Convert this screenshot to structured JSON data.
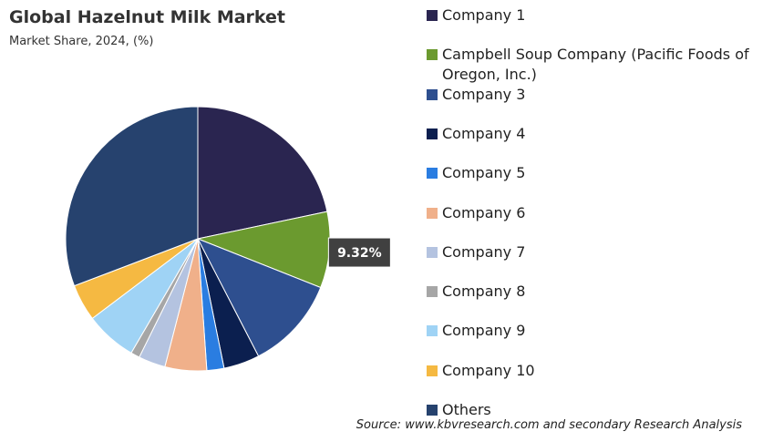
{
  "chart_data": {
    "type": "pie",
    "title": "Global Hazelnut Milk Market",
    "subtitle": "Market Share, 2024, (%)",
    "source": "Source: www.kbvresearch.com and secondary Research Analysis",
    "categories": [
      "Company 1",
      "Campbell Soup Company (Pacific Foods of Oregon, Inc.)",
      "Company 3",
      "Company 4",
      "Company 5",
      "Company 6",
      "Company 7",
      "Company 8",
      "Company 9",
      "Company 10",
      "Others"
    ],
    "values": [
      21.7,
      9.32,
      11.4,
      4.4,
      2.1,
      5.1,
      3.3,
      1.1,
      6.3,
      4.5,
      30.8
    ],
    "value_labels": [
      null,
      "9.32%",
      null,
      null,
      null,
      null,
      null,
      null,
      null,
      null,
      null
    ],
    "colors": [
      "#2a2550",
      "#6b9a2f",
      "#2e4f8f",
      "#0b1f4f",
      "#2a7de1",
      "#f0b08a",
      "#b4c3e0",
      "#a6a6a6",
      "#9fd3f5",
      "#f5b942",
      "#26426e"
    ],
    "legend": "right"
  }
}
